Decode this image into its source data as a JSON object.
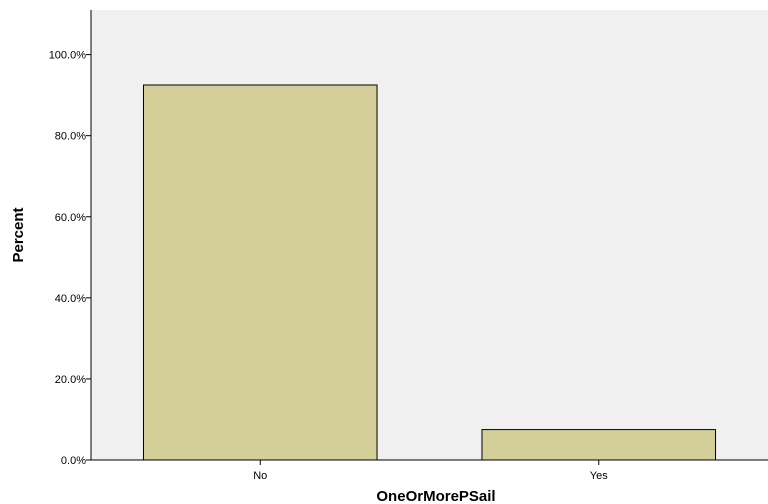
{
  "chart_data": {
    "type": "bar",
    "categories": [
      "No",
      "Yes"
    ],
    "values": [
      92.5,
      7.5
    ],
    "xlabel": "OneOrMorePSail",
    "ylabel": "Percent",
    "ylim": [
      0,
      111
    ],
    "yticks": [
      0,
      20,
      40,
      60,
      80,
      100
    ],
    "ytick_labels": [
      "0.0%",
      "20.0%",
      "40.0%",
      "60.0%",
      "80.0%",
      "100.0%"
    ],
    "grid": false,
    "bar_color": "#d4cf98",
    "plot_bg": "#f0f0f0"
  }
}
